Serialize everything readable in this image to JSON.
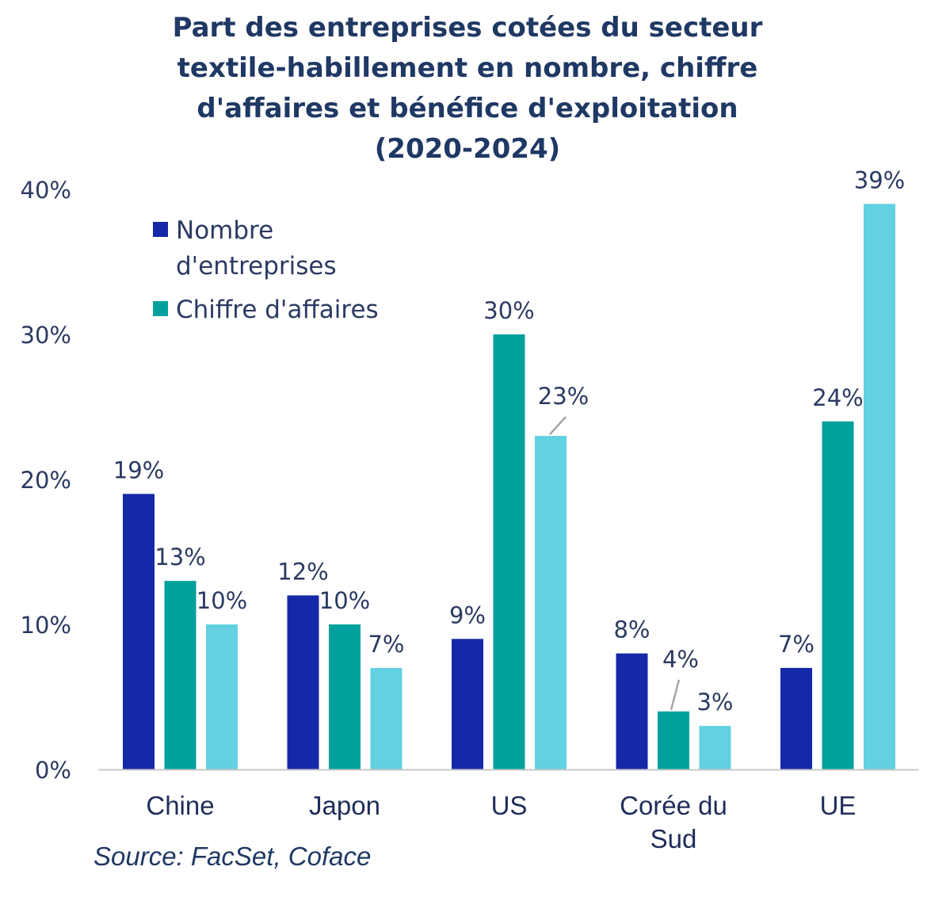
{
  "chart_data": {
    "type": "bar",
    "title": [
      "Part des entreprises cotées du secteur",
      "textile-habillement en nombre, chiffre",
      "d'affaires et bénéfice d'exploitation",
      "(2020-2024)"
    ],
    "categories": [
      [
        "Chine"
      ],
      [
        "Japon"
      ],
      [
        "US"
      ],
      [
        "Corée du",
        "Sud"
      ],
      [
        "UE"
      ]
    ],
    "series": [
      {
        "name": "Nombre d'entreprises",
        "legend_lines": [
          "Nombre",
          "d'entreprises"
        ],
        "color": "#1428a8",
        "values": [
          19,
          12,
          9,
          8,
          7
        ],
        "labels": [
          "19%",
          "12%",
          "9%",
          "8%",
          "7%"
        ]
      },
      {
        "name": "Chiffre d'affaires",
        "legend_lines": [
          "Chiffre d'affaires"
        ],
        "color": "#00a19c",
        "values": [
          13,
          10,
          30,
          4,
          24
        ],
        "labels": [
          "13%",
          "10%",
          "30%",
          "4%",
          "24%"
        ]
      },
      {
        "name": "",
        "legend_lines": [],
        "color": "#62d1e1",
        "values": [
          10,
          7,
          23,
          3,
          39
        ],
        "labels": [
          "10%",
          "7%",
          "23%",
          "3%",
          "39%"
        ]
      }
    ],
    "ylim": [
      0,
      40
    ],
    "yticks": [
      "0%",
      "10%",
      "20%",
      "30%",
      "40%"
    ],
    "xlabel": "",
    "ylabel": "",
    "grid": false,
    "legend_position": "top-left"
  },
  "source": "Source: FacSet, Coface"
}
